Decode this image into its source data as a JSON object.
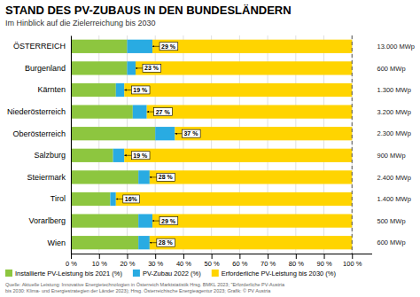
{
  "chart_data": {
    "type": "bar",
    "orientation": "horizontal",
    "stacked": true,
    "title": "STAND DES PV-ZUBAUS IN DEN BUNDESLÄNDERN",
    "subtitle": "Im Hinblick auf die Zielerreichung bis 2030",
    "categories": [
      "ÖSTERREICH",
      "Burgenland",
      "Kärnten",
      "Niederösterreich",
      "Oberösterreich",
      "Salzburg",
      "Steiermark",
      "Tirol",
      "Vorarlberg",
      "Wien"
    ],
    "series": [
      {
        "name": "Installierte PV-Leistung bis 2021 (%)",
        "color": "#8dc63f",
        "values": [
          20,
          20,
          16,
          22,
          30,
          15,
          24,
          14,
          24,
          24
        ]
      },
      {
        "name": "PV-Zubau 2022 (%)",
        "color": "#29abe2",
        "values": [
          9,
          3,
          3,
          5,
          7,
          4,
          4,
          2,
          5,
          4
        ]
      },
      {
        "name": "Erforderliche PV-Leistung bis 2030 (%)",
        "color": "#ffd400",
        "values": [
          71,
          77,
          81,
          73,
          63,
          81,
          72,
          84,
          71,
          72
        ]
      }
    ],
    "xlim": [
      0,
      107
    ],
    "xticks": [
      {
        "value": 0,
        "label": "0 %"
      },
      {
        "value": 10,
        "label": "10 %"
      },
      {
        "value": 20,
        "label": "20 %"
      },
      {
        "value": 30,
        "label": "30 %"
      },
      {
        "value": 40,
        "label": "40 %"
      },
      {
        "value": 50,
        "label": "50 %"
      },
      {
        "value": 60,
        "label": "60 %"
      },
      {
        "value": 70,
        "label": "70 %"
      },
      {
        "value": 80,
        "label": "80 %"
      },
      {
        "value": 90,
        "label": "90 %"
      },
      {
        "value": 100,
        "label": "100 %"
      }
    ],
    "grid": true,
    "legend": "bottom",
    "vlines": [
      100
    ],
    "annotations": [
      {
        "category": "ÖSTERREICH",
        "value": 29,
        "label": "29 %"
      },
      {
        "category": "Burgenland",
        "value": 23,
        "label": "23 %"
      },
      {
        "category": "Kärnten",
        "value": 19,
        "label": "19 %"
      },
      {
        "category": "Niederösterreich",
        "value": 27,
        "label": "27 %"
      },
      {
        "category": "Oberösterreich",
        "value": 37,
        "label": "37 %"
      },
      {
        "category": "Salzburg",
        "value": 19,
        "label": "19 %"
      },
      {
        "category": "Steiermark",
        "value": 28,
        "label": "28 %"
      },
      {
        "category": "Tirol",
        "value": 16,
        "label": "16%"
      },
      {
        "category": "Vorarlberg",
        "value": 29,
        "label": "29 %"
      },
      {
        "category": "Wien",
        "value": 28,
        "label": "28 %"
      }
    ],
    "right_labels": [
      "13.000 MWp",
      "600 MWp",
      "1.300 MWp",
      "3.200 MWp",
      "2.300 MWp",
      "900 MWp",
      "2.400 MWp",
      "1.400 MWp",
      "500 MWp",
      "600 MWp"
    ],
    "source": "Quelle: Aktuelle Leistung: Innovative Energietechnologien in Österreich Marktstatistik Hrsg. BMKL 2023; \"Erforderliche PV-Austria\nbis 2030: Klima- und Energiestrategien der Länder 2023); Hrsg. Österreichische Energieagentur 2023; Grafik: © PV Austria"
  }
}
